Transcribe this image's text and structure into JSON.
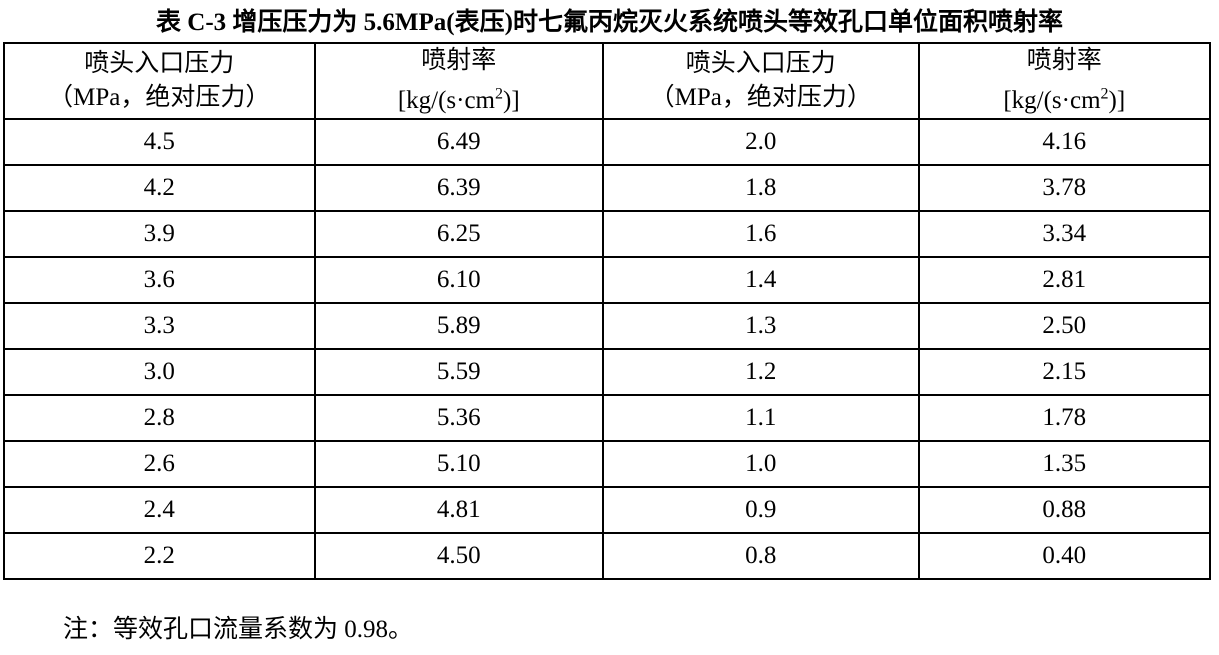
{
  "title": "表 C-3  增压压力为 5.6MPa(表压)时七氟丙烷灭火系统喷头等效孔口单位面积喷射率",
  "headers": [
    {
      "line1": "喷头入口压力",
      "line2": "（MPa，绝对压力）"
    },
    {
      "line1": "喷射率",
      "line2_pre": "[kg/(s·cm",
      "line2_sup": "2",
      "line2_post": ")]"
    },
    {
      "line1": "喷头入口压力",
      "line2": "（MPa，绝对压力）"
    },
    {
      "line1": "喷射率",
      "line2_pre": "[kg/(s·cm",
      "line2_sup": "2",
      "line2_post": ")]"
    }
  ],
  "rows": [
    [
      "4.5",
      "6.49",
      "2.0",
      "4.16"
    ],
    [
      "4.2",
      "6.39",
      "1.8",
      "3.78"
    ],
    [
      "3.9",
      "6.25",
      "1.6",
      "3.34"
    ],
    [
      "3.6",
      "6.10",
      "1.4",
      "2.81"
    ],
    [
      "3.3",
      "5.89",
      "1.3",
      "2.50"
    ],
    [
      "3.0",
      "5.59",
      "1.2",
      "2.15"
    ],
    [
      "2.8",
      "5.36",
      "1.1",
      "1.78"
    ],
    [
      "2.6",
      "5.10",
      "1.0",
      "1.35"
    ],
    [
      "2.4",
      "4.81",
      "0.9",
      "0.88"
    ],
    [
      "2.2",
      "4.50",
      "0.8",
      "0.40"
    ]
  ],
  "note": "注：等效孔口流量系数为 0.98。"
}
